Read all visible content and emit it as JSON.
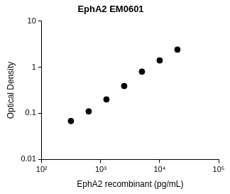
{
  "chart_data": {
    "type": "scatter",
    "title": "EphA2 EM0601",
    "x_label": "EphA2 recombinant (pg/mL)",
    "y_label": "Optical Density",
    "x": [
      312.5,
      625,
      1250,
      2500,
      5000,
      10000,
      20000
    ],
    "values": [
      0.068,
      0.11,
      0.2,
      0.39,
      0.8,
      1.4,
      2.4
    ],
    "color": "#000000",
    "marker": "circle",
    "log": true,
    "xlim": [
      100,
      100000
    ],
    "xticks": [
      {
        "value": 100,
        "label": "10²"
      },
      {
        "value": 1000,
        "label": "10³"
      },
      {
        "value": 10000,
        "label": "10⁴"
      },
      {
        "value": 100000,
        "label": "10⁵"
      }
    ],
    "ylim": [
      0.01,
      10
    ],
    "yticks": [
      0.01,
      0.1,
      1,
      10
    ],
    "grid": false
  }
}
